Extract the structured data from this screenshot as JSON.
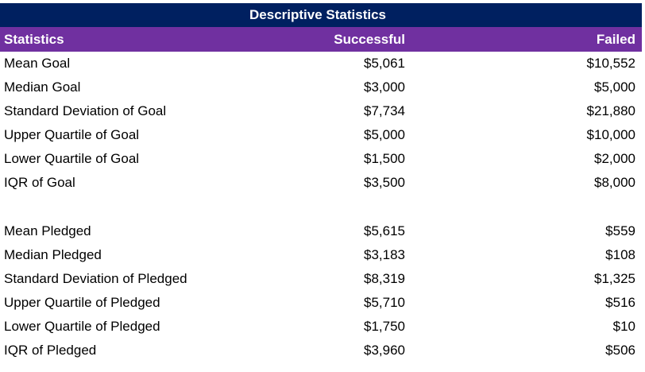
{
  "table": {
    "title": "Descriptive Statistics",
    "headers": {
      "statistic": "Statistics",
      "successful": "Successful",
      "failed": "Failed"
    },
    "goal_rows": [
      {
        "label": "Mean Goal",
        "successful": "$5,061",
        "failed": "$10,552"
      },
      {
        "label": "Median Goal",
        "successful": "$3,000",
        "failed": "$5,000"
      },
      {
        "label": "Standard Deviation of Goal",
        "successful": "$7,734",
        "failed": "$21,880"
      },
      {
        "label": "Upper Quartile of Goal",
        "successful": "$5,000",
        "failed": "$10,000"
      },
      {
        "label": "Lower Quartile of Goal",
        "successful": "$1,500",
        "failed": "$2,000"
      },
      {
        "label": "IQR of Goal",
        "successful": "$3,500",
        "failed": "$8,000"
      }
    ],
    "pledged_rows": [
      {
        "label": "Mean Pledged",
        "successful": "$5,615",
        "failed": "$559"
      },
      {
        "label": "Median Pledged",
        "successful": "$3,183",
        "failed": "$108"
      },
      {
        "label": "Standard Deviation of Pledged",
        "successful": "$8,319",
        "failed": "$1,325"
      },
      {
        "label": "Upper Quartile of Pledged",
        "successful": "$5,710",
        "failed": "$516"
      },
      {
        "label": "Lower Quartile of Pledged",
        "successful": "$1,750",
        "failed": "$10"
      },
      {
        "label": "IQR of Pledged",
        "successful": "$3,960",
        "failed": "$506"
      }
    ]
  },
  "colors": {
    "title_background": "#002060",
    "header_background": "#7030a0",
    "header_text": "#ffffff"
  }
}
